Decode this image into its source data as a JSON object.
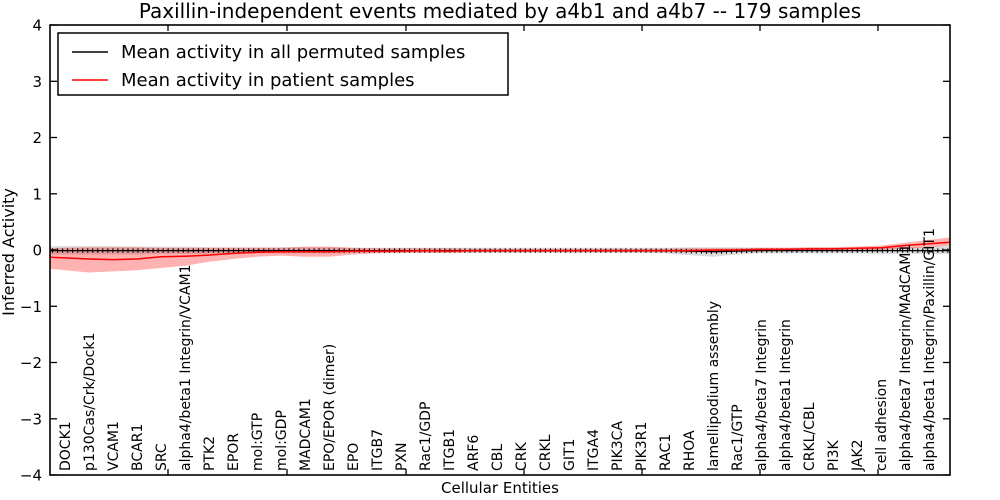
{
  "title": "Paxillin-independent events mediated by a4b1 and a4b7 -- 179 samples",
  "axes": {
    "xlabel": "Cellular Entities",
    "ylabel": "Inferred Activity"
  },
  "legend": {
    "items": [
      {
        "label": "Mean activity in all permuted samples",
        "color": "#000000"
      },
      {
        "label": "Mean activity in patient samples",
        "color": "#ff0000"
      }
    ]
  },
  "chart_data": {
    "type": "line",
    "title": "Paxillin-independent events mediated by a4b1 and a4b7 -- 179 samples",
    "xlabel": "Cellular Entities",
    "ylabel": "Inferred Activity",
    "ylim": [
      -4,
      4
    ],
    "yticks": [
      4,
      3,
      2,
      1,
      0,
      -1,
      -2,
      -3,
      -4
    ],
    "grid": false,
    "legend_position": "upper left",
    "categories": [
      "DOCK1",
      "p130Cas/Crk/Dock1",
      "VCAM1",
      "BCAR1",
      "SRC",
      "alpha4/beta1 Integrin/VCAM1",
      "PTK2",
      "EPOR",
      "mol:GTP",
      "mol:GDP",
      "MADCAM1",
      "EPO/EPOR (dimer)",
      "EPO",
      "ITGB7",
      "PXN",
      "Rac1/GDP",
      "ITGB1",
      "ARF6",
      "CBL",
      "CRK",
      "CRKL",
      "GIT1",
      "ITGA4",
      "PIK3CA",
      "PIK3R1",
      "RAC1",
      "RHOA",
      "lamellipodium assembly",
      "Rac1/GTP",
      "alpha4/beta7 Integrin",
      "alpha4/beta1 Integrin",
      "CRKL/CBL",
      "PI3K",
      "JAK2",
      "cell adhesion",
      "alpha4/beta7 Integrin/MAdCAM1",
      "alpha4/beta1 Integrin/Paxillin/GIT1"
    ],
    "series": [
      {
        "name": "Mean activity in all permuted samples",
        "color": "#000000",
        "band_color": "#999999",
        "band_opacity": 0.35,
        "values": [
          -0.01,
          -0.01,
          -0.01,
          -0.01,
          -0.01,
          -0.01,
          -0.01,
          -0.01,
          -0.01,
          -0.01,
          -0.01,
          -0.01,
          -0.01,
          -0.01,
          -0.01,
          -0.01,
          -0.01,
          -0.01,
          -0.01,
          -0.01,
          -0.01,
          -0.01,
          -0.01,
          -0.01,
          -0.01,
          -0.01,
          -0.02,
          -0.03,
          -0.02,
          -0.01,
          -0.01,
          -0.01,
          -0.01,
          -0.01,
          -0.01,
          -0.01,
          -0.01
        ],
        "band_low": [
          -0.08,
          -0.08,
          -0.08,
          -0.08,
          -0.07,
          -0.07,
          -0.07,
          -0.06,
          -0.06,
          -0.06,
          -0.06,
          -0.06,
          -0.05,
          -0.05,
          -0.05,
          -0.05,
          -0.05,
          -0.05,
          -0.05,
          -0.05,
          -0.05,
          -0.05,
          -0.05,
          -0.05,
          -0.05,
          -0.06,
          -0.09,
          -0.12,
          -0.08,
          -0.06,
          -0.06,
          -0.06,
          -0.06,
          -0.06,
          -0.07,
          -0.07,
          -0.07
        ],
        "band_high": [
          0.07,
          0.07,
          0.07,
          0.06,
          0.06,
          0.06,
          0.05,
          0.05,
          0.05,
          0.05,
          0.05,
          0.05,
          0.04,
          0.04,
          0.04,
          0.04,
          0.04,
          0.04,
          0.04,
          0.04,
          0.04,
          0.04,
          0.04,
          0.04,
          0.04,
          0.04,
          0.05,
          0.05,
          0.05,
          0.04,
          0.04,
          0.04,
          0.04,
          0.04,
          0.05,
          0.05,
          0.06
        ]
      },
      {
        "name": "Mean activity in patient samples",
        "color": "#ff0000",
        "band_color": "#ff0000",
        "band_opacity": 0.3,
        "values": [
          -0.14,
          -0.16,
          -0.17,
          -0.16,
          -0.12,
          -0.11,
          -0.09,
          -0.06,
          -0.04,
          -0.03,
          -0.03,
          -0.03,
          -0.02,
          -0.02,
          -0.02,
          -0.01,
          -0.02,
          -0.01,
          -0.01,
          -0.01,
          -0.01,
          -0.01,
          -0.01,
          -0.01,
          -0.01,
          -0.01,
          -0.01,
          0.0,
          0.0,
          0.01,
          0.01,
          0.02,
          0.02,
          0.03,
          0.04,
          0.08,
          0.11
        ],
        "band_low": [
          -0.36,
          -0.4,
          -0.38,
          -0.36,
          -0.32,
          -0.28,
          -0.21,
          -0.16,
          -0.12,
          -0.1,
          -0.12,
          -0.12,
          -0.08,
          -0.06,
          -0.05,
          -0.05,
          -0.05,
          -0.04,
          -0.04,
          -0.04,
          -0.04,
          -0.04,
          -0.04,
          -0.04,
          -0.04,
          -0.04,
          -0.04,
          -0.03,
          -0.03,
          -0.02,
          -0.02,
          -0.01,
          -0.01,
          0.0,
          0.0,
          0.02,
          0.05
        ],
        "band_high": [
          0.04,
          0.05,
          0.05,
          0.05,
          0.04,
          0.04,
          0.04,
          0.04,
          0.04,
          0.04,
          0.06,
          0.06,
          0.04,
          0.03,
          0.03,
          0.03,
          0.03,
          0.02,
          0.02,
          0.02,
          0.02,
          0.02,
          0.02,
          0.02,
          0.02,
          0.02,
          0.03,
          0.03,
          0.03,
          0.04,
          0.04,
          0.05,
          0.05,
          0.06,
          0.08,
          0.13,
          0.18
        ]
      }
    ]
  }
}
